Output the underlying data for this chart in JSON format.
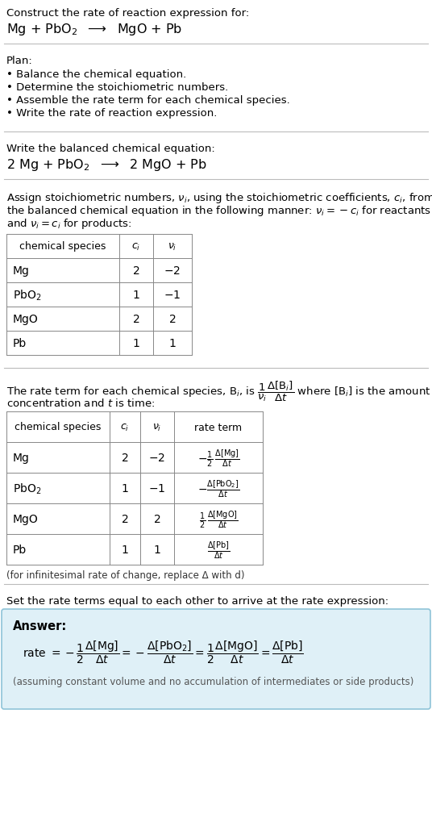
{
  "title_line1": "Construct the rate of reaction expression for:",
  "plan_header": "Plan:",
  "plan_items": [
    "• Balance the chemical equation.",
    "• Determine the stoichiometric numbers.",
    "• Assemble the rate term for each chemical species.",
    "• Write the rate of reaction expression."
  ],
  "balanced_header": "Write the balanced chemical equation:",
  "stoich_intro_lines": [
    "Assign stoichiometric numbers, $\\nu_i$, using the stoichiometric coefficients, $c_i$, from",
    "the balanced chemical equation in the following manner: $\\nu_i = -c_i$ for reactants",
    "and $\\nu_i = c_i$ for products:"
  ],
  "rate_intro_line1": "The rate term for each chemical species, B$_i$, is $\\dfrac{1}{\\nu_i}\\dfrac{\\Delta[\\mathrm{B}_i]}{\\Delta t}$ where [B$_i$] is the amount",
  "rate_intro_line2": "concentration and $t$ is time:",
  "infinitesimal_note": "(for infinitesimal rate of change, replace Δ with d)",
  "set_equal_text": "Set the rate terms equal to each other to arrive at the rate expression:",
  "answer_label": "Answer:",
  "answer_box_color": "#dff0f7",
  "answer_box_border": "#8fc4d8",
  "assuming_note": "(assuming constant volume and no accumulation of intermediates or side products)",
  "bg_color": "#ffffff",
  "sep_color": "#bbbbbb",
  "table_color": "#888888"
}
